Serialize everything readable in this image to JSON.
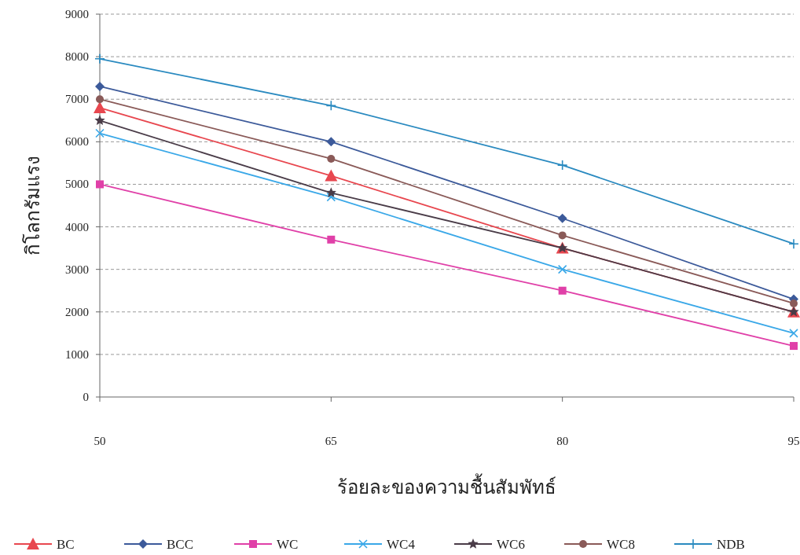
{
  "chart_data": {
    "type": "line",
    "xlabel": "ร้อยละของความชื้นสัมพัทธ์",
    "ylabel": "กิโลกรัมแรง",
    "categories": [
      "50",
      "65",
      "80",
      "95"
    ],
    "series": [
      {
        "name": "BC",
        "color": "#e8474f",
        "marker": "triangle",
        "values": [
          6800,
          5200,
          3500,
          2000
        ]
      },
      {
        "name": "BCC",
        "color": "#3c5a9a",
        "marker": "diamond",
        "values": [
          7300,
          6000,
          4200,
          2300
        ]
      },
      {
        "name": "WC",
        "color": "#e040a8",
        "marker": "square",
        "values": [
          5000,
          3700,
          2500,
          1200
        ]
      },
      {
        "name": "WC4",
        "color": "#3aa8e8",
        "marker": "cross",
        "values": [
          6200,
          4700,
          3000,
          1500
        ]
      },
      {
        "name": "WC6",
        "color": "#4a3c48",
        "marker": "star",
        "values": [
          6500,
          4800,
          3500,
          2000
        ]
      },
      {
        "name": "WC8",
        "color": "#8a5a58",
        "marker": "circle",
        "values": [
          7000,
          5600,
          3800,
          2200
        ]
      },
      {
        "name": "NDB",
        "color": "#2a8ac0",
        "marker": "plus",
        "values": [
          7950,
          6850,
          5450,
          3600
        ]
      }
    ],
    "ylim": [
      0,
      9000
    ],
    "yticks": [
      0,
      1000,
      2000,
      3000,
      4000,
      5000,
      6000,
      7000,
      8000,
      9000
    ],
    "grid": "y",
    "legend": "bottom",
    "line_style": "solid"
  }
}
